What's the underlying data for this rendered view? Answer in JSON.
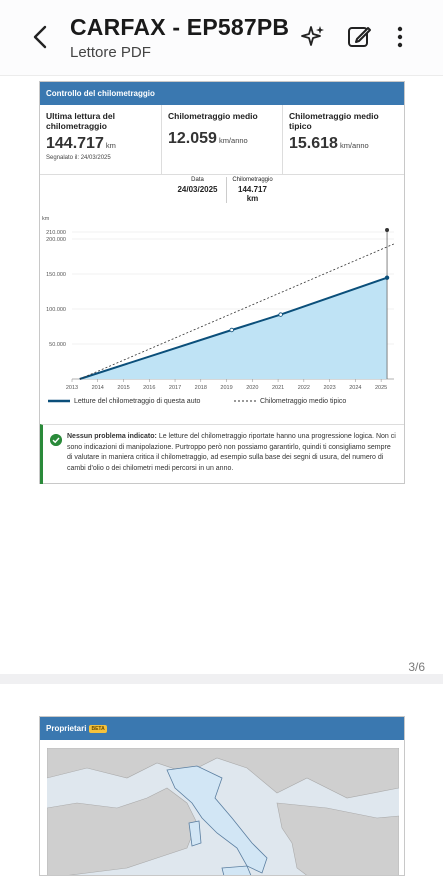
{
  "appbar": {
    "title": "CARFAX - EP587PB",
    "subtitle": "Lettore PDF",
    "icons": [
      "back-arrow-icon",
      "sparkle-icon",
      "edit-icon",
      "more-vert-icon"
    ]
  },
  "page_counter": "3/6",
  "mileage_card": {
    "title": "Controllo del chilometraggio",
    "last_reading": {
      "label": "Ultima lettura del chilometraggio",
      "value": "144.717",
      "unit": "km",
      "note": "Segnalato il: 24/03/2025"
    },
    "average": {
      "label": "Chilometraggio medio",
      "value": "12.059",
      "unit": "km/anno"
    },
    "typical": {
      "label": "Chilometraggio medio tipico",
      "value": "15.618",
      "unit": "km/anno"
    },
    "tooltip": {
      "date_label": "Data",
      "date_value": "24/03/2025",
      "km_label": "Chilometraggio",
      "km_value": "144.717",
      "km_unit": "km"
    },
    "legend_actual": "Letture del chilometraggio di questa auto",
    "legend_typical": "Chilometraggio medio tipico",
    "note_bold": "Nessun problema indicato:",
    "note_text": "Le letture del chilometraggio riportate hanno una progressione logica. Non ci sono indicazioni di manipolazione. Purtroppo però non possiamo garantirlo, quindi ti consigliamo sempre di valutare in maniera critica il chilometraggio, ad esempio sulla base dei segni di usura, del numero di cambi d'olio o dei chilometri medi percorsi in un anno."
  },
  "owners_card": {
    "title": "Proprietari",
    "badge": "BETA"
  },
  "chart_data": {
    "type": "area",
    "ylabel": "km",
    "x_ticks": [
      "2013",
      "2014",
      "2015",
      "2016",
      "2017",
      "2018",
      "2019",
      "2020",
      "2021",
      "2022",
      "2023",
      "2024",
      "2025"
    ],
    "y_ticks": [
      "50.000",
      "100.000",
      "150.000",
      "200.000",
      "210.000"
    ],
    "ylim": [
      0,
      210000
    ],
    "xlim": [
      2013,
      2025.5
    ],
    "series": [
      {
        "name": "Letture del chilometraggio di questa auto",
        "x": [
          2013.3,
          2019.2,
          2021.1,
          2025.23
        ],
        "values": [
          0,
          70000,
          92000,
          144717
        ]
      },
      {
        "name": "Chilometraggio medio tipico",
        "x": [
          2013.3,
          2025.5
        ],
        "values": [
          0,
          193000
        ]
      }
    ],
    "colors": {
      "area": "#bfe3f5",
      "line": "#0b4f7a",
      "typical": "#333333"
    },
    "grid": true
  }
}
